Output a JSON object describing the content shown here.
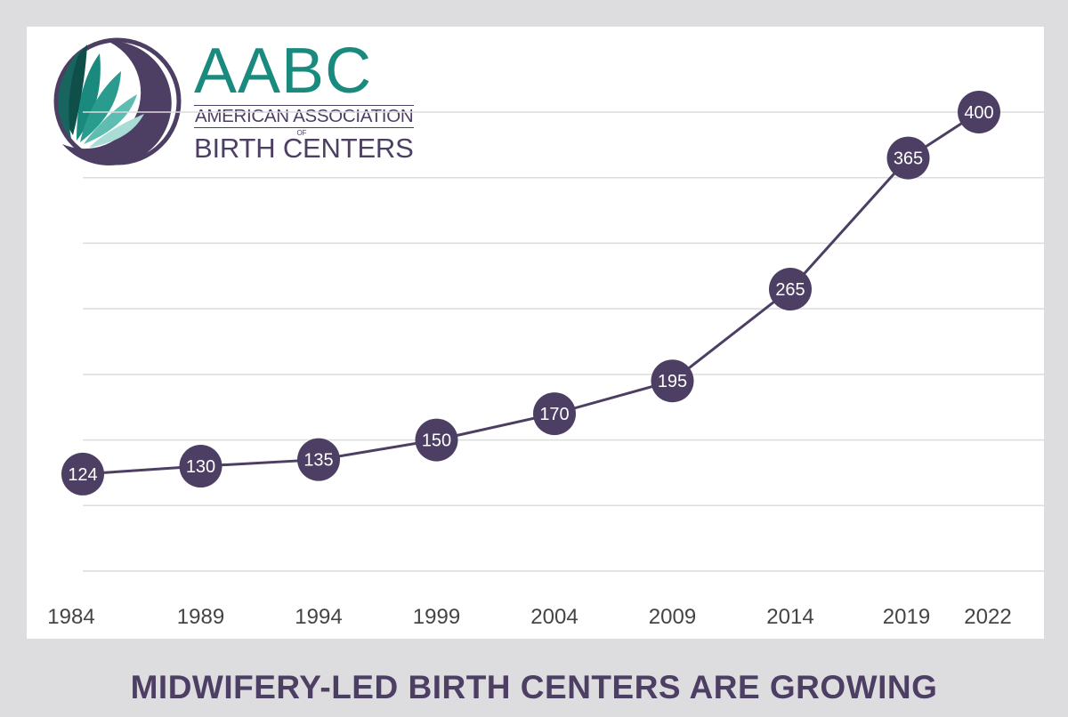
{
  "logo": {
    "acronym": "AABC",
    "line1": "AMERICAN ASSOCIATION",
    "of": "OF",
    "line2": "BIRTH CENTERS"
  },
  "caption": "MIDWIFERY-LED BIRTH CENTERS ARE GROWING",
  "colors": {
    "background": "#dddde0",
    "panel": "#ffffff",
    "line": "#4d3f63",
    "marker": "#4d3f63",
    "marker_text": "#ffffff",
    "grid": "#dcdcdc",
    "teal": "#1b8a7e"
  },
  "chart_data": {
    "type": "line",
    "x": [
      "1984",
      "1989",
      "1994",
      "1999",
      "2004",
      "2009",
      "2014",
      "2019",
      "2022"
    ],
    "series": [
      {
        "values": [
          124,
          130,
          135,
          150,
          170,
          195,
          265,
          365,
          400
        ]
      }
    ],
    "ylim": [
      50,
      400
    ],
    "grid": true,
    "data_labels": true,
    "legend": "none"
  }
}
